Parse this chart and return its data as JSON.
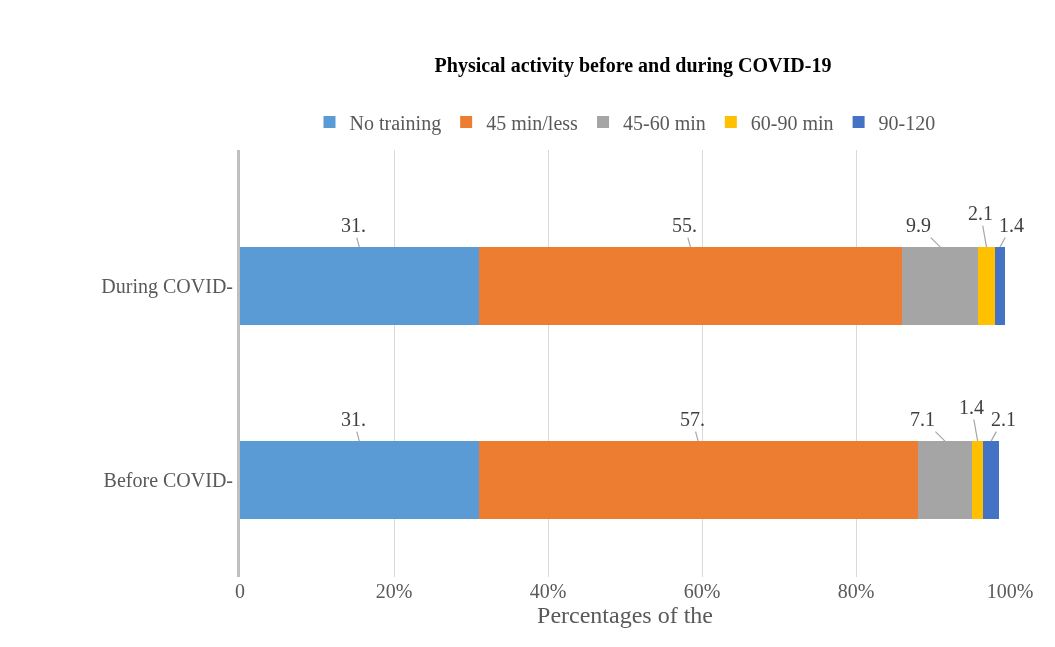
{
  "chart_data": {
    "type": "bar",
    "orientation": "horizontal",
    "stacked": true,
    "title": "Physical activity before and during COVID-19",
    "xlabel": "Percentages of the",
    "categories": [
      "During COVID-",
      "Before COVID-"
    ],
    "series": [
      {
        "name": "No training",
        "color": "#5b9bd5",
        "values": [
          31,
          31
        ],
        "value_labels": [
          "31.",
          "31."
        ]
      },
      {
        "name": "45 min/less",
        "color": "#ed7d31",
        "values": [
          55,
          57
        ],
        "value_labels": [
          "55.",
          "57."
        ]
      },
      {
        "name": "45-60 min",
        "color": "#a5a5a5",
        "values": [
          9.9,
          7.1
        ],
        "value_labels": [
          "9.9",
          "7.1"
        ]
      },
      {
        "name": "60-90 min",
        "color": "#ffc000",
        "values": [
          2.1,
          1.4
        ],
        "value_labels": [
          "2.1",
          "1.4"
        ]
      },
      {
        "name": "90-120",
        "color": "#4472c4",
        "values": [
          1.4,
          2.1
        ],
        "value_labels": [
          "1.4",
          "2.1"
        ]
      }
    ],
    "xlim": [
      0,
      100
    ],
    "xticks": [
      0,
      {
        "value": 20,
        "label": "20%"
      },
      {
        "value": 40,
        "label": "40%"
      },
      {
        "value": 60,
        "label": "60%"
      },
      {
        "value": 80,
        "label": "80%"
      },
      {
        "value": 100,
        "label": "100%"
      }
    ],
    "grid": "x",
    "legend": "top"
  }
}
